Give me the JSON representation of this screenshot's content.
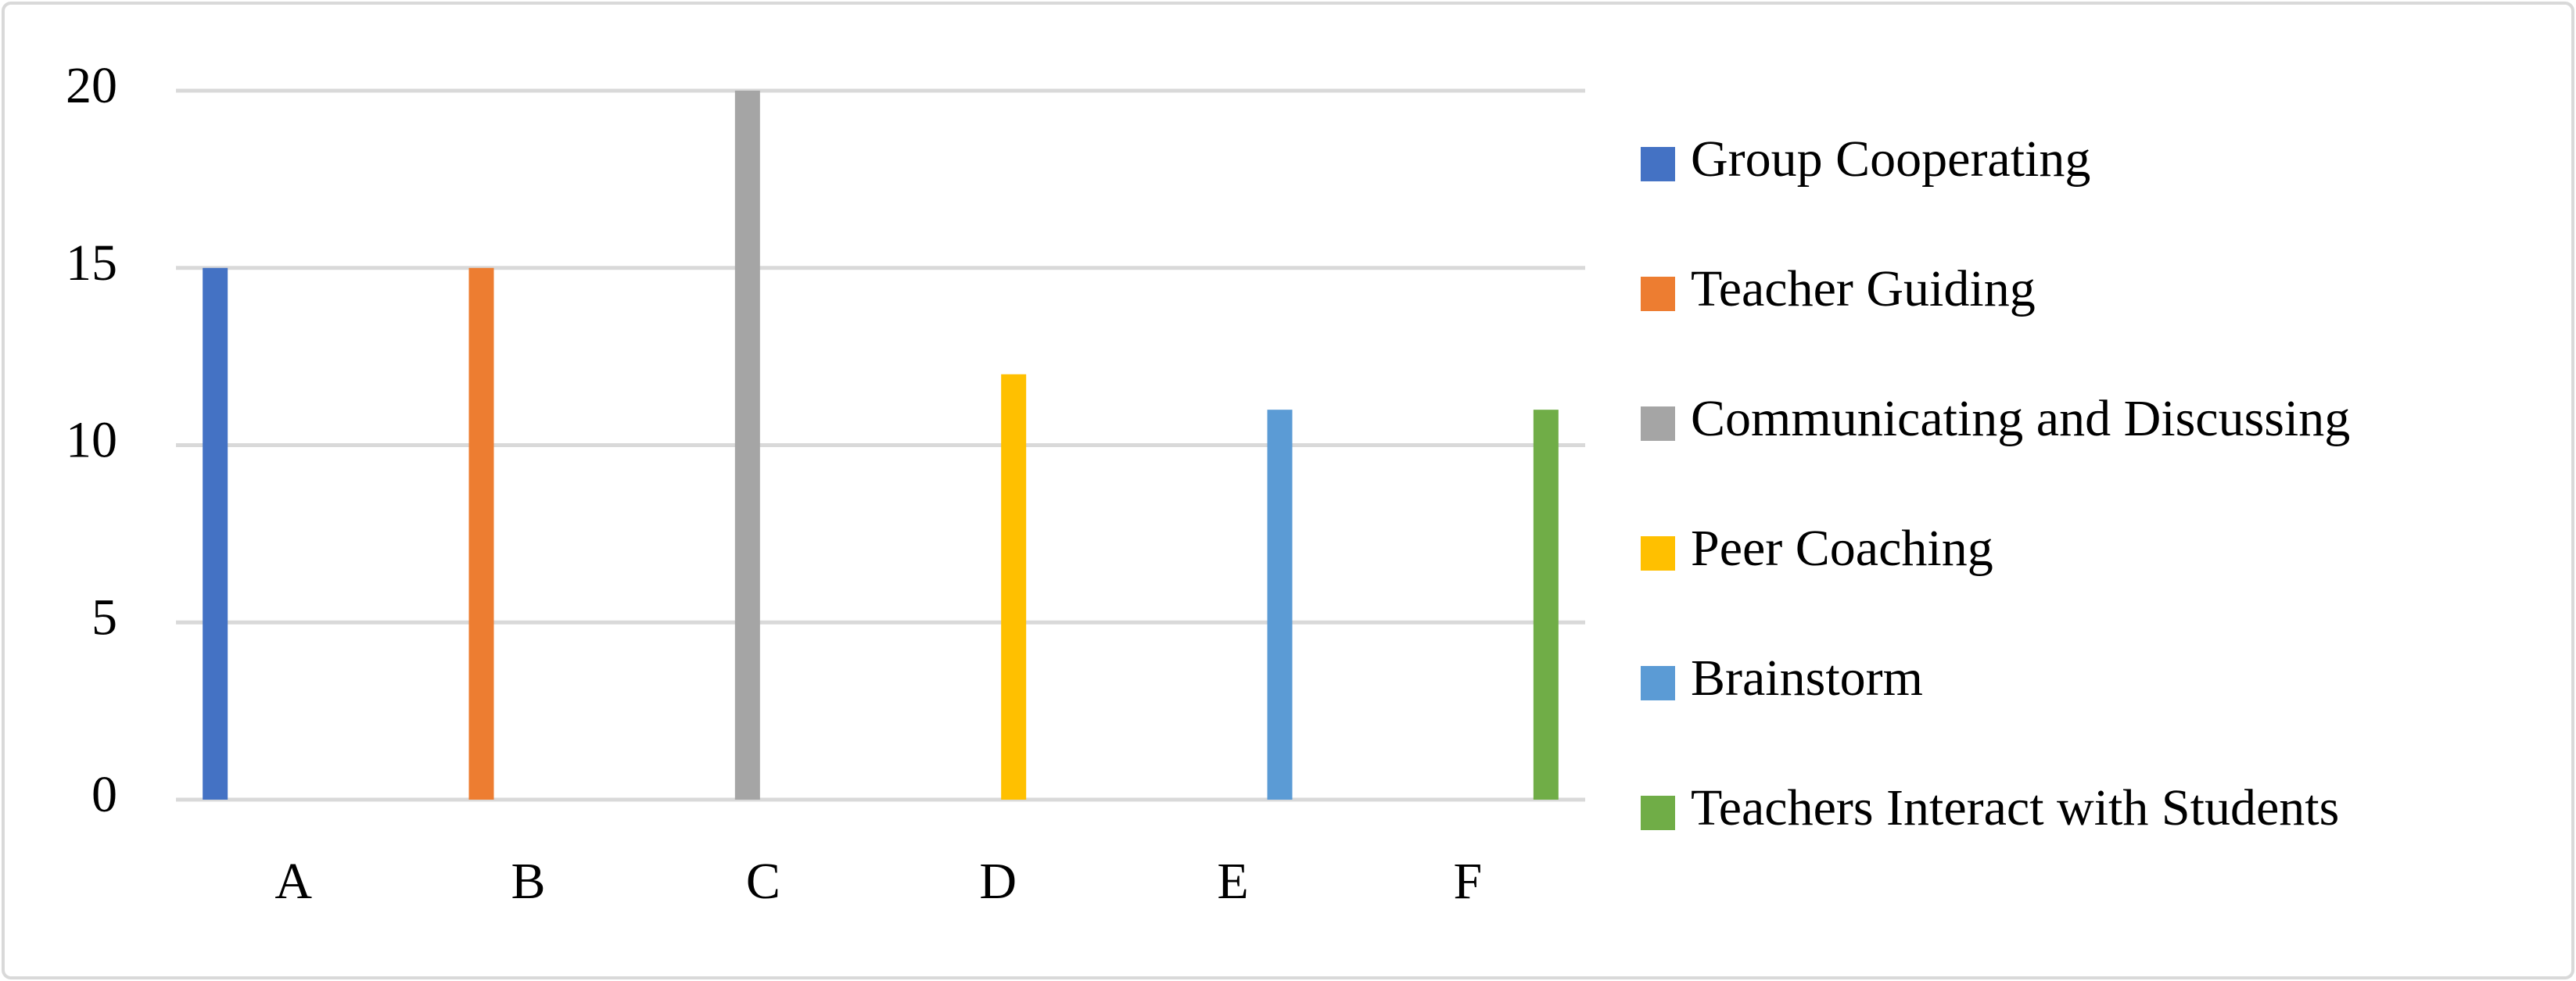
{
  "chart_data": {
    "type": "bar",
    "categories": [
      "A",
      "B",
      "C",
      "D",
      "E",
      "F"
    ],
    "series": [
      {
        "name": "Group Cooperating",
        "color": "#4472c4",
        "values": [
          15,
          0,
          0,
          0,
          0,
          0
        ]
      },
      {
        "name": "Teacher Guiding",
        "color": "#ed7d31",
        "values": [
          0,
          15,
          0,
          0,
          0,
          0
        ]
      },
      {
        "name": "Communicating and Discussing",
        "color": "#a5a5a5",
        "values": [
          0,
          0,
          20,
          0,
          0,
          0
        ]
      },
      {
        "name": "Peer Coaching",
        "color": "#ffc000",
        "values": [
          0,
          0,
          0,
          12,
          0,
          0
        ]
      },
      {
        "name": "Brainstorm",
        "color": "#5b9bd5",
        "values": [
          0,
          0,
          0,
          0,
          11,
          0
        ]
      },
      {
        "name": "Teachers Interact with Students",
        "color": "#70ad47",
        "values": [
          0,
          0,
          0,
          0,
          0,
          11
        ]
      }
    ],
    "ylim": [
      0,
      20
    ],
    "yticks": [
      0,
      5,
      10,
      15,
      20
    ],
    "grid": true,
    "legend": "right"
  }
}
